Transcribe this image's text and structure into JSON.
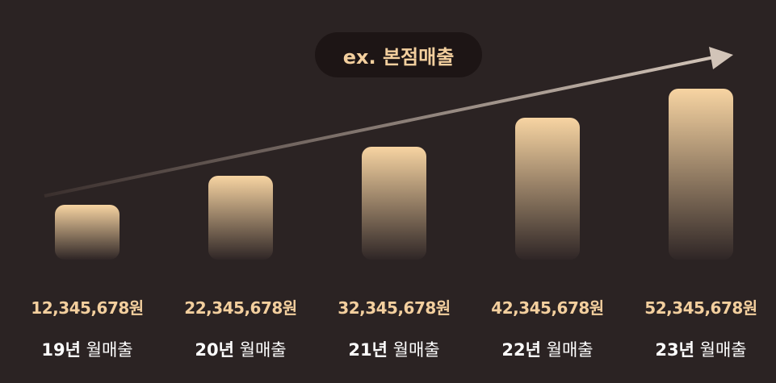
{
  "chart_data": {
    "type": "bar",
    "title": "ex. 본점매출",
    "categories": [
      "19년 월매출",
      "20년 월매출",
      "21년 월매출",
      "22년 월매출",
      "23년 월매출"
    ],
    "category_year": [
      "19년",
      "20년",
      "21년",
      "22년",
      "23년"
    ],
    "category_suffix": "월매출",
    "values": [
      12345678,
      22345678,
      32345678,
      42345678,
      52345678
    ],
    "value_labels": [
      "12,345,678원",
      "22,345,678원",
      "32,345,678원",
      "42,345,678원",
      "52,345,678원"
    ],
    "unit": "원",
    "ylim": [
      0,
      52345678
    ],
    "grid": false,
    "trend_arrow": true,
    "colors": {
      "background": "#2b2323",
      "bar_top": "#f7d4a2",
      "bar_bottom": "#2f2626",
      "value_text": "#f3cf9e",
      "category_text": "#ffffff",
      "arrow": "#c8b8aa",
      "title_pill": "#1d1515"
    }
  }
}
